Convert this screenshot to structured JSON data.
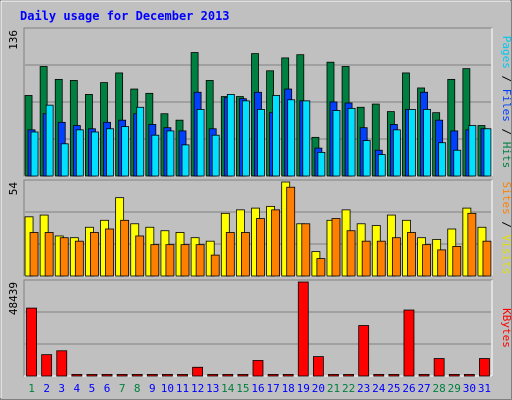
{
  "chart_data": {
    "type": "bar",
    "title": "Daily usage for December 2013",
    "categories": [
      "1",
      "2",
      "3",
      "4",
      "5",
      "6",
      "7",
      "8",
      "9",
      "10",
      "11",
      "12",
      "13",
      "14",
      "15",
      "16",
      "17",
      "18",
      "19",
      "20",
      "21",
      "22",
      "23",
      "24",
      "25",
      "26",
      "27",
      "28",
      "29",
      "30",
      "31"
    ],
    "weekend_days": [
      "1",
      "7",
      "8",
      "14",
      "15",
      "21",
      "22",
      "28",
      "29"
    ],
    "panels": [
      {
        "name": "hits-files-pages",
        "ymax_label": "136",
        "ymax": 136,
        "series": [
          {
            "name": "Hits",
            "color": "#008040",
            "values": [
              75,
              102,
              90,
              89,
              76,
              87,
              96,
              81,
              77,
              58,
              52,
              115,
              89,
              74,
              74,
              114,
              98,
              110,
              113,
              36,
              106,
              102,
              64,
              67,
              60,
              96,
              82,
              59,
              90,
              100,
              47
            ]
          },
          {
            "name": "Files",
            "color": "#0040FF",
            "values": [
              43,
              58,
              50,
              47,
              44,
              50,
              52,
              58,
              48,
              45,
              42,
              78,
              44,
              73,
              72,
              78,
              59,
              81,
              70,
              26,
              69,
              68,
              45,
              24,
              48,
              62,
              78,
              52,
              42,
              43,
              44
            ]
          },
          {
            "name": "Pages",
            "color": "#00E0FF",
            "values": [
              41,
              66,
              30,
              43,
              41,
              44,
              46,
              64,
              38,
              42,
              29,
              62,
              38,
              76,
              70,
              62,
              75,
              71,
              70,
              22,
              61,
              63,
              33,
              20,
              43,
              62,
              62,
              31,
              24,
              47,
              44
            ]
          }
        ]
      },
      {
        "name": "visits-sites",
        "ymax_label": "54",
        "ymax": 54,
        "series": [
          {
            "name": "Visits",
            "color": "#FFFF00",
            "values": [
              34,
              35,
              23,
              22,
              28,
              32,
              45,
              30,
              28,
              26,
              25,
              22,
              20,
              36,
              38,
              39,
              40,
              54,
              30,
              14,
              32,
              38,
              30,
              29,
              35,
              32,
              22,
              21,
              27,
              39,
              28
            ]
          },
          {
            "name": "Sites",
            "color": "#FF8000",
            "values": [
              25,
              25,
              22,
              20,
              25,
              27,
              32,
              23,
              18,
              18,
              18,
              18,
              12,
              25,
              25,
              33,
              38,
              51,
              30,
              10,
              33,
              26,
              20,
              20,
              22,
              25,
              18,
              15,
              17,
              36,
              20
            ]
          }
        ]
      },
      {
        "name": "kbytes",
        "ymax_label": "48439",
        "ymax": 48439,
        "series": [
          {
            "name": "KBytes",
            "color": "#FF0000",
            "values": [
              35000,
              11000,
              13000,
              800,
              800,
              800,
              800,
              800,
              800,
              800,
              800,
              4500,
              800,
              800,
              800,
              8000,
              800,
              800,
              48439,
              10000,
              800,
              800,
              26000,
              800,
              800,
              34000,
              800,
              9000,
              800,
              800,
              9000
            ]
          }
        ]
      }
    ],
    "right_labels": {
      "panel1": [
        {
          "text": "Pages",
          "color": "#00C8F0"
        },
        {
          "text": " / ",
          "color": "#000000"
        },
        {
          "text": "Files",
          "color": "#0040FF"
        },
        {
          "text": " / ",
          "color": "#000000"
        },
        {
          "text": "Hits",
          "color": "#008040"
        }
      ],
      "panel2": [
        {
          "text": "Sites",
          "color": "#FF8000"
        },
        {
          "text": " / ",
          "color": "#000000"
        },
        {
          "text": "Visits",
          "color": "#E0E000"
        }
      ],
      "panel3": [
        {
          "text": "KBytes",
          "color": "#FF0000"
        }
      ]
    },
    "colors": {
      "background": "#C0C0C0",
      "plot_area": "#C0C0C0",
      "title": "#0000FF",
      "weekday_label": "#0000FF",
      "weekend_label": "#008040",
      "gridline": "#808080"
    },
    "grid": true
  }
}
